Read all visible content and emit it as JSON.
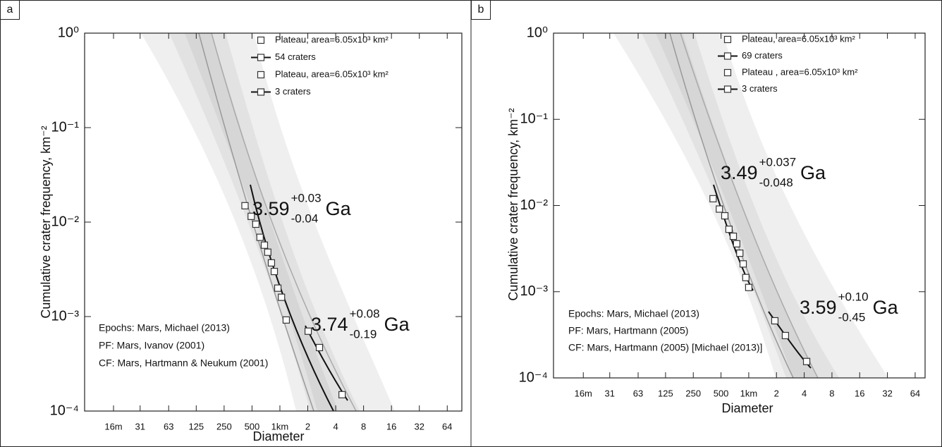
{
  "chart_data": [
    {
      "type": "scatter",
      "panel": "a",
      "xlabel": "Diameter",
      "ylabel": "Cumulative crater frequency, km⁻²",
      "xscale": "log",
      "yscale": "log",
      "xlim": [
        0.0078,
        92
      ],
      "ylim": [
        0.0001,
        1
      ],
      "xticks": [
        {
          "value": 0.016,
          "label": "16m"
        },
        {
          "value": 0.031,
          "label": "31"
        },
        {
          "value": 0.063,
          "label": "63"
        },
        {
          "value": 0.125,
          "label": "125"
        },
        {
          "value": 0.25,
          "label": "250"
        },
        {
          "value": 0.5,
          "label": "500"
        },
        {
          "value": 1,
          "label": "1km"
        },
        2,
        4,
        8,
        16,
        32,
        64
      ],
      "yticks": [
        {
          "value": 1,
          "label": "10⁰"
        },
        {
          "value": 0.1,
          "label": "10⁻¹"
        },
        {
          "value": 0.01,
          "label": "10⁻²"
        },
        {
          "value": 0.001,
          "label": "10⁻³"
        },
        {
          "value": 0.0001,
          "label": "10⁻⁴"
        }
      ],
      "series": [
        {
          "name": "Plateau, area=6.05x10³ km²",
          "fit_name": "54 craters",
          "color": "#333333",
          "x": [
            0.42,
            0.49,
            0.55,
            0.61,
            0.68,
            0.74,
            0.81,
            0.87,
            0.95,
            1.04,
            1.17
          ],
          "values": [
            0.0149,
            0.0115,
            0.0095,
            0.0069,
            0.0057,
            0.0048,
            0.0037,
            0.003,
            0.002,
            0.0016,
            0.00092
          ]
        },
        {
          "name": "Plateau, area=6.05x10³ km²",
          "fit_name": "3 craters",
          "color": "#333333",
          "x": [
            2.02,
            2.67,
            4.69
          ],
          "values": [
            0.0007,
            0.00047,
            0.000149
          ]
        }
      ],
      "annotations": [
        {
          "age": "3.59",
          "plus": "+0.03",
          "minus": "-0.04",
          "unit": "Ga"
        },
        {
          "age": "3.74",
          "plus": "+0.08",
          "minus": "-0.19",
          "unit": "Ga"
        }
      ],
      "notes": [
        "Epochs: Mars, Michael (2013)",
        "PF: Mars, Ivanov (2001)",
        "CF: Mars, Hartmann & Neukum (2001)"
      ]
    },
    {
      "type": "scatter",
      "panel": "b",
      "xlabel": "Diameter",
      "ylabel": "Cumulative crater frequency, km⁻²",
      "xscale": "log",
      "yscale": "log",
      "xlim": [
        0.0076,
        82
      ],
      "ylim": [
        0.0001,
        1
      ],
      "xticks": [
        {
          "value": 0.016,
          "label": "16m"
        },
        {
          "value": 0.031,
          "label": "31"
        },
        {
          "value": 0.063,
          "label": "63"
        },
        {
          "value": 0.125,
          "label": "125"
        },
        {
          "value": 0.25,
          "label": "250"
        },
        {
          "value": 0.5,
          "label": "500"
        },
        {
          "value": 1,
          "label": "1km"
        },
        2,
        4,
        8,
        16,
        32,
        64
      ],
      "yticks": [
        {
          "value": 1,
          "label": "10⁰"
        },
        {
          "value": 0.1,
          "label": "10⁻¹"
        },
        {
          "value": 0.01,
          "label": "10⁻²"
        },
        {
          "value": 0.001,
          "label": "10⁻³"
        },
        {
          "value": 0.0001,
          "label": "10⁻⁴"
        }
      ],
      "series": [
        {
          "name": "Plateau, area=6.05x10³ km²",
          "fit_name": "69 craters",
          "color": "#333333",
          "x": [
            0.41,
            0.48,
            0.55,
            0.61,
            0.68,
            0.74,
            0.8,
            0.87,
            0.93,
            1.0
          ],
          "values": [
            0.012,
            0.0091,
            0.0076,
            0.0053,
            0.0044,
            0.0036,
            0.0028,
            0.0021,
            0.00146,
            0.00112
          ]
        },
        {
          "name": "Plateau , area=6.05x10³ km²",
          "fit_name": "3 craters",
          "color": "#333333",
          "x": [
            1.92,
            2.5,
            4.25
          ],
          "values": [
            0.00046,
            0.00031,
            0.000155
          ]
        }
      ],
      "annotations": [
        {
          "age": "3.49",
          "plus": "+0.037",
          "minus": "-0.048",
          "unit": "Ga"
        },
        {
          "age": "3.59",
          "plus": "+0.10",
          "minus": "-0.45",
          "unit": "Ga"
        }
      ],
      "notes": [
        "Epochs: Mars, Michael (2013)",
        "PF: Mars, Hartmann (2005)",
        "CF: Mars, Hartmann (2005) [Michael (2013)]"
      ]
    }
  ]
}
